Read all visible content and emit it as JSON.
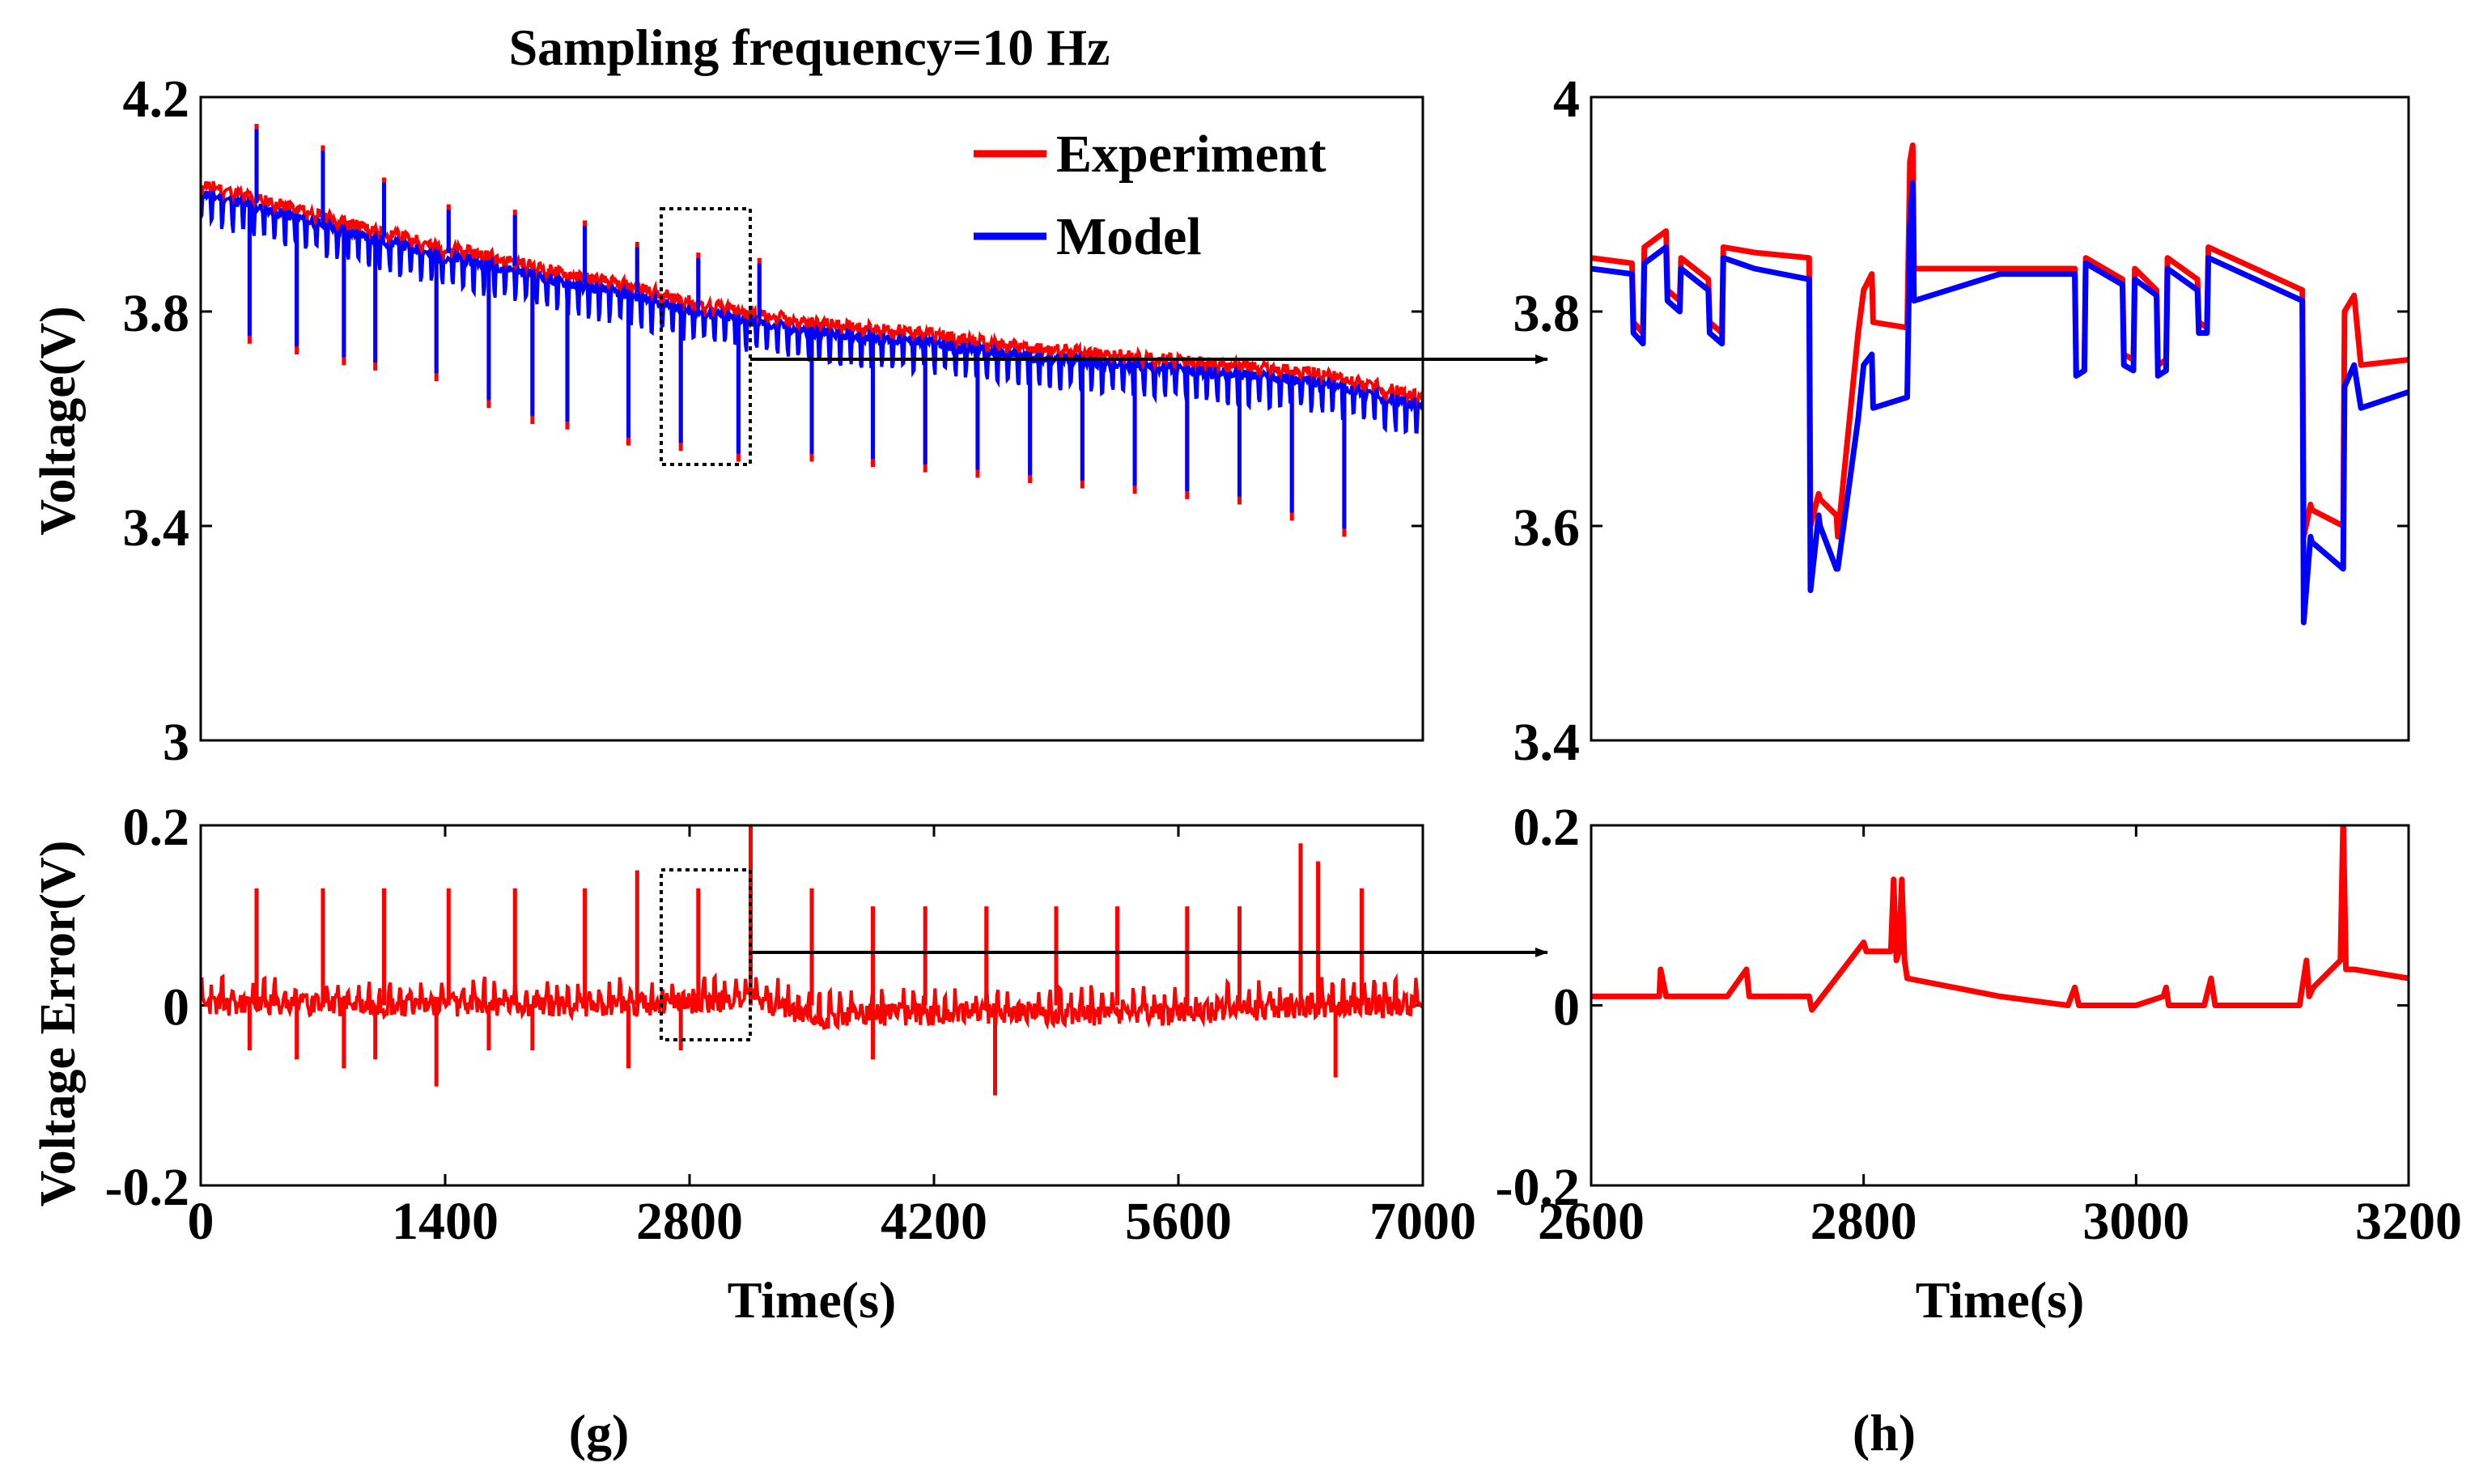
{
  "figure": {
    "title": "Sampling frequency=10 Hz",
    "panel_labels": [
      "(g)",
      "(h)"
    ]
  },
  "legend": {
    "experiment": "Experiment",
    "model": "Model"
  },
  "colors": {
    "experiment": "#ff0000",
    "model": "#0000ff",
    "error": "#ff0000",
    "axes": "#000000"
  },
  "chart_data": [
    {
      "id": "g-voltage",
      "type": "line",
      "title": "Sampling frequency=10 Hz",
      "xlabel": "",
      "ylabel": "Voltage(V)",
      "xlim": [
        0,
        7000
      ],
      "ylim": [
        3.0,
        4.2
      ],
      "yticks": [
        "3",
        "3.4",
        "3.8",
        "4.2"
      ],
      "xticks": [],
      "legend": [
        "Experiment",
        "Model"
      ],
      "series": [
        {
          "name": "Experiment",
          "x": [
            0,
            350,
            700,
            1050,
            1400,
            1750,
            2100,
            2450,
            2800,
            3150,
            3500,
            3850,
            4200,
            4550,
            4900,
            5250,
            5600,
            5950,
            6300,
            6650,
            7000
          ],
          "values": [
            4.04,
            4.01,
            3.98,
            3.95,
            3.92,
            3.9,
            3.87,
            3.85,
            3.82,
            3.8,
            3.78,
            3.77,
            3.76,
            3.74,
            3.73,
            3.72,
            3.71,
            3.7,
            3.69,
            3.67,
            3.64
          ]
        },
        {
          "name": "Model",
          "x": [
            0,
            350,
            700,
            1050,
            1400,
            1750,
            2100,
            2450,
            2800,
            3150,
            3500,
            3850,
            4200,
            4550,
            4900,
            5250,
            5600,
            5950,
            6300,
            6650,
            7000
          ],
          "values": [
            4.03,
            4.0,
            3.97,
            3.94,
            3.91,
            3.89,
            3.86,
            3.84,
            3.81,
            3.79,
            3.77,
            3.76,
            3.75,
            3.73,
            3.72,
            3.71,
            3.7,
            3.69,
            3.68,
            3.66,
            3.63
          ]
        }
      ],
      "pulse_minima": {
        "x": [
          280,
          550,
          820,
          1000,
          1350,
          1650,
          1900,
          2100,
          2450,
          2750,
          3080,
          3500,
          3850,
          4150,
          4450,
          4750,
          5050,
          5350,
          5650,
          5950,
          6250,
          6550
        ],
        "values": [
          3.74,
          3.72,
          3.7,
          3.69,
          3.67,
          3.62,
          3.59,
          3.58,
          3.55,
          3.54,
          3.52,
          3.52,
          3.51,
          3.5,
          3.49,
          3.48,
          3.47,
          3.46,
          3.45,
          3.44,
          3.41,
          3.38
        ]
      },
      "pulse_maxima": {
        "x": [
          320,
          700,
          1050,
          1420,
          1800,
          2200,
          2500,
          2850,
          3200
        ],
        "values": [
          4.15,
          4.11,
          4.05,
          4.0,
          3.99,
          3.97,
          3.93,
          3.91,
          3.9
        ]
      }
    },
    {
      "id": "g-error",
      "type": "line",
      "xlabel": "Time(s)",
      "ylabel": "Voltage Error(V)",
      "xlim": [
        0,
        7000
      ],
      "ylim": [
        -0.2,
        0.2
      ],
      "xticks": [
        "0",
        "1400",
        "2800",
        "4200",
        "5600",
        "7000"
      ],
      "yticks": [
        "-0.2",
        "0",
        "0.2"
      ],
      "series": [
        {
          "name": "Error",
          "x": [
            0,
            500,
            1000,
            1500,
            2000,
            2500,
            3000,
            3150,
            3500,
            4000,
            4500,
            5000,
            5500,
            6000,
            6500,
            7000
          ],
          "values": [
            0.0,
            0.0,
            0.0,
            0.0,
            0.0,
            0.0,
            0.005,
            0.01,
            -0.015,
            -0.01,
            -0.01,
            -0.01,
            -0.01,
            -0.005,
            0.0,
            0.0
          ]
        }
      ],
      "spikes_up": {
        "x": [
          320,
          700,
          1050,
          1420,
          1800,
          2200,
          2500,
          2850,
          3150,
          3500,
          3850,
          4150,
          4500,
          4900,
          5250,
          5650,
          5950,
          6300,
          6400,
          6650
        ],
        "values": [
          0.13,
          0.13,
          0.13,
          0.13,
          0.13,
          0.13,
          0.15,
          0.13,
          0.21,
          0.13,
          0.11,
          0.11,
          0.11,
          0.11,
          0.11,
          0.11,
          0.11,
          0.18,
          0.16,
          0.13
        ]
      },
      "spikes_down": {
        "x": [
          280,
          550,
          820,
          1000,
          1350,
          1650,
          1900,
          2450,
          2750,
          3850,
          4550,
          6500
        ],
        "values": [
          -0.05,
          -0.06,
          -0.07,
          -0.06,
          -0.09,
          -0.05,
          -0.05,
          -0.07,
          -0.05,
          -0.06,
          -0.1,
          -0.08
        ]
      }
    },
    {
      "id": "h-voltage",
      "type": "line",
      "xlabel": "",
      "ylabel": "",
      "xlim": [
        2600,
        3200
      ],
      "ylim": [
        3.4,
        4.0
      ],
      "yticks": [
        "3.4",
        "3.6",
        "3.8",
        "4"
      ],
      "xticks": [],
      "series": [
        {
          "name": "Experiment",
          "x": [
            2600,
            2630,
            2631,
            2638,
            2639,
            2655,
            2656,
            2665,
            2666,
            2686,
            2687,
            2696,
            2697,
            2720,
            2760,
            2761,
            2767,
            2768,
            2780,
            2781,
            2796,
            2800,
            2806,
            2807,
            2832,
            2834,
            2836,
            2837,
            2900,
            2955,
            2956,
            2962,
            2963,
            2990,
            2991,
            2998,
            2999,
            3015,
            3016,
            3022,
            3023,
            3045,
            3046,
            3052,
            3053,
            3122,
            3123,
            3128,
            3129,
            3152,
            3153,
            3160,
            3165,
            3200
          ],
          "values": [
            3.85,
            3.845,
            3.79,
            3.78,
            3.86,
            3.875,
            3.82,
            3.81,
            3.85,
            3.83,
            3.79,
            3.78,
            3.86,
            3.855,
            3.85,
            3.6,
            3.63,
            3.625,
            3.61,
            3.59,
            3.78,
            3.82,
            3.835,
            3.79,
            3.785,
            3.94,
            3.955,
            3.84,
            3.84,
            3.84,
            3.74,
            3.745,
            3.85,
            3.83,
            3.76,
            3.755,
            3.84,
            3.82,
            3.75,
            3.755,
            3.85,
            3.83,
            3.79,
            3.785,
            3.86,
            3.82,
            3.59,
            3.62,
            3.615,
            3.6,
            3.8,
            3.815,
            3.75,
            3.755
          ]
        },
        {
          "name": "Model",
          "x": [
            2600,
            2630,
            2631,
            2638,
            2639,
            2655,
            2656,
            2665,
            2666,
            2686,
            2687,
            2696,
            2697,
            2720,
            2760,
            2761,
            2767,
            2768,
            2780,
            2781,
            2796,
            2800,
            2806,
            2807,
            2832,
            2834,
            2836,
            2837,
            2900,
            2955,
            2956,
            2962,
            2963,
            2990,
            2991,
            2998,
            2999,
            3015,
            3016,
            3022,
            3023,
            3045,
            3046,
            3052,
            3053,
            3122,
            3123,
            3128,
            3129,
            3152,
            3153,
            3160,
            3165,
            3200
          ],
          "values": [
            3.84,
            3.835,
            3.78,
            3.77,
            3.845,
            3.86,
            3.81,
            3.8,
            3.84,
            3.82,
            3.78,
            3.77,
            3.85,
            3.84,
            3.83,
            3.54,
            3.61,
            3.6,
            3.56,
            3.56,
            3.7,
            3.75,
            3.76,
            3.71,
            3.72,
            3.88,
            3.92,
            3.81,
            3.835,
            3.835,
            3.74,
            3.745,
            3.845,
            3.825,
            3.75,
            3.745,
            3.83,
            3.815,
            3.74,
            3.745,
            3.84,
            3.82,
            3.78,
            3.78,
            3.85,
            3.81,
            3.51,
            3.59,
            3.585,
            3.56,
            3.73,
            3.75,
            3.71,
            3.725
          ]
        }
      ]
    },
    {
      "id": "h-error",
      "type": "line",
      "xlabel": "Time(s)",
      "ylabel": "",
      "xlim": [
        2600,
        3200
      ],
      "ylim": [
        -0.2,
        0.2
      ],
      "xticks": [
        "2600",
        "2800",
        "3000",
        "3200"
      ],
      "yticks": [
        "-0.2",
        "0",
        "0.2"
      ],
      "series": [
        {
          "name": "Error",
          "x": [
            2600,
            2650,
            2651,
            2655,
            2656,
            2700,
            2714,
            2716,
            2718,
            2760,
            2762,
            2800,
            2802,
            2810,
            2820,
            2822,
            2824,
            2826,
            2828,
            2830,
            2832,
            2900,
            2950,
            2955,
            2958,
            2960,
            3000,
            3020,
            3022,
            3024,
            3050,
            3055,
            3058,
            3060,
            3120,
            3125,
            3127,
            3130,
            3150,
            3152,
            3154,
            3158,
            3160,
            3200
          ],
          "values": [
            0.01,
            0.01,
            0.04,
            0.01,
            0.01,
            0.01,
            0.04,
            0.01,
            0.01,
            0.01,
            -0.005,
            0.07,
            0.06,
            0.06,
            0.06,
            0.14,
            0.05,
            0.06,
            0.14,
            0.05,
            0.03,
            0.01,
            0.0,
            0.02,
            0.0,
            0.0,
            0.0,
            0.01,
            0.02,
            0.0,
            0.0,
            0.03,
            0.0,
            0.0,
            0.0,
            0.05,
            0.01,
            0.02,
            0.05,
            0.21,
            0.04,
            0.04,
            0.04,
            0.03
          ]
        }
      ]
    }
  ]
}
